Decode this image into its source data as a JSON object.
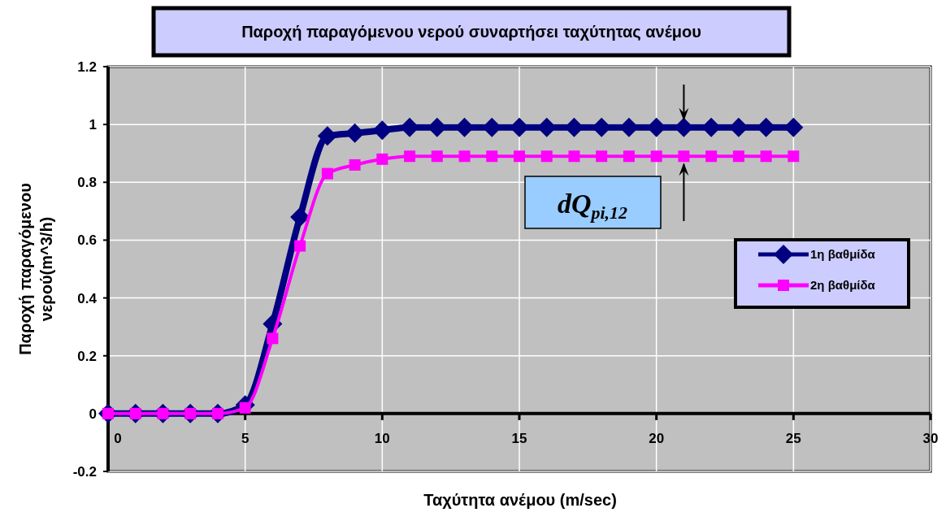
{
  "chart_data": {
    "type": "line",
    "title": "Παροχή παραγόμενου νερού συναρτήσει ταχύτητας ανέμου",
    "xlabel": "Ταχύτητα ανέμου (m/sec)",
    "ylabel": "Παροχή παραγόμενου νερού(m^3/h)",
    "x": [
      0,
      1,
      2,
      3,
      4,
      5,
      6,
      7,
      8,
      9,
      10,
      11,
      12,
      13,
      14,
      15,
      16,
      17,
      18,
      19,
      20,
      21,
      22,
      23,
      24,
      25
    ],
    "series": [
      {
        "name": "1η βαθμίδα",
        "color": "#000080",
        "marker": "diamond",
        "values": [
          0,
          0,
          0,
          0,
          0,
          0.03,
          0.31,
          0.68,
          0.96,
          0.97,
          0.98,
          0.99,
          0.99,
          0.99,
          0.99,
          0.99,
          0.99,
          0.99,
          0.99,
          0.99,
          0.99,
          0.99,
          0.99,
          0.99,
          0.99,
          0.99
        ]
      },
      {
        "name": "2η βαθμίδα",
        "color": "#ff00ff",
        "marker": "square",
        "values": [
          0,
          0,
          0,
          0,
          0,
          0.02,
          0.26,
          0.58,
          0.83,
          0.86,
          0.88,
          0.89,
          0.89,
          0.89,
          0.89,
          0.89,
          0.89,
          0.89,
          0.89,
          0.89,
          0.89,
          0.89,
          0.89,
          0.89,
          0.89,
          0.89
        ]
      }
    ],
    "xlim": [
      0,
      30
    ],
    "xticks": [
      0,
      5,
      10,
      15,
      20,
      25,
      30
    ],
    "ylim": [
      -0.2,
      1.2
    ],
    "yticks": [
      -0.2,
      0,
      0.2,
      0.4,
      0.6,
      0.8,
      1,
      1.2
    ],
    "grid": true,
    "legend": "right",
    "line_style": "solid",
    "annotations": [
      "dQ$_{pi,12}$"
    ]
  }
}
